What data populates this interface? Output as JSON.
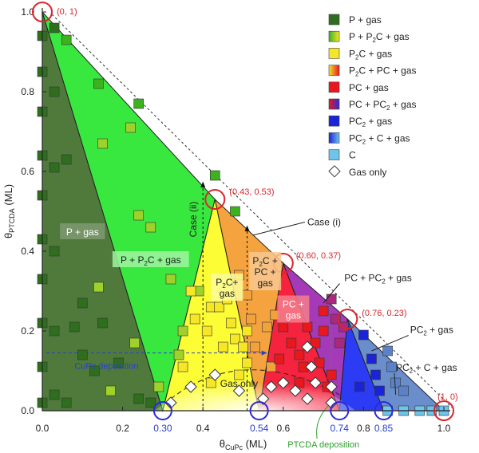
{
  "chart_data": {
    "type": "scatter",
    "xlabel_main": "θ",
    "xlabel_sub": "CuPc",
    "xlabel_unit": " (ML)",
    "ylabel_main": "θ",
    "ylabel_sub": "PTCDA",
    "ylabel_unit": " (ML)",
    "xlim": [
      0,
      1.04
    ],
    "ylim": [
      0,
      1.0
    ],
    "x_ticks": [
      {
        "v": 0.0,
        "t": "0.0"
      },
      {
        "v": 0.2,
        "t": "0.2"
      },
      {
        "v": 0.4,
        "t": "0.4"
      },
      {
        "v": 0.6,
        "t": "0.6"
      },
      {
        "v": 0.8,
        "t": "0.8"
      },
      {
        "v": 1.0,
        "t": "1.0"
      }
    ],
    "x_special_ticks": [
      {
        "v": 0.3,
        "t": "0.30"
      },
      {
        "v": 0.54,
        "t": "0.54"
      },
      {
        "v": 0.74,
        "t": "0.74"
      },
      {
        "v": 0.85,
        "t": "0.85"
      }
    ],
    "y_ticks": [
      {
        "v": 0.0,
        "t": "0.0"
      },
      {
        "v": 0.2,
        "t": "0.2"
      },
      {
        "v": 0.4,
        "t": "0.4"
      },
      {
        "v": 0.6,
        "t": "0.6"
      },
      {
        "v": 0.8,
        "t": "0.8"
      },
      {
        "v": 1.0,
        "t": "1.0"
      }
    ],
    "regions": [
      {
        "name": "P + gas",
        "color": "#4f7a3c",
        "poly": [
          [
            0,
            0
          ],
          [
            0,
            1
          ],
          [
            0.3,
            0
          ]
        ]
      },
      {
        "name": "P + P2C + gas",
        "color": "#39e83f",
        "poly": [
          [
            0,
            1
          ],
          [
            0.43,
            0.53
          ],
          [
            0.3,
            0
          ]
        ]
      },
      {
        "name": "P2C + gas",
        "color": "#fdfd36",
        "poly": [
          [
            0.43,
            0.53
          ],
          [
            0.54,
            0
          ],
          [
            0.3,
            0
          ]
        ]
      },
      {
        "name": "P2C + PC + gas",
        "color": "#f5a33f",
        "poly": [
          [
            0.43,
            0.53
          ],
          [
            0.6,
            0.37
          ],
          [
            0.54,
            0
          ]
        ]
      },
      {
        "name": "PC + gas",
        "color": "#f6233e",
        "poly": [
          [
            0.6,
            0.37
          ],
          [
            0.74,
            0
          ],
          [
            0.54,
            0
          ]
        ]
      },
      {
        "name": "PC + PC2 + gas",
        "color": "#a53ab8",
        "poly": [
          [
            0.6,
            0.37
          ],
          [
            0.76,
            0.23
          ],
          [
            0.74,
            0
          ]
        ]
      },
      {
        "name": "PC2 + gas",
        "color": "#2b3cf4",
        "poly": [
          [
            0.76,
            0.23
          ],
          [
            0.85,
            0
          ],
          [
            0.74,
            0
          ]
        ]
      },
      {
        "name": "PC2 + C + gas",
        "color": "#6a8ecb",
        "poly": [
          [
            0.76,
            0.23
          ],
          [
            1,
            0
          ],
          [
            0.85,
            0
          ]
        ]
      }
    ],
    "series": [
      {
        "name": "P + gas",
        "marker": "square",
        "fill": "#2f6e1e",
        "points": [
          [
            0,
            0.94
          ],
          [
            0,
            0.85
          ],
          [
            0,
            0.75
          ],
          [
            0,
            0.64
          ],
          [
            0,
            0.54
          ],
          [
            0,
            0.43
          ],
          [
            0,
            0.33
          ],
          [
            0,
            0.22
          ],
          [
            0,
            0.11
          ],
          [
            0,
            0.02
          ],
          [
            0.03,
            0.96
          ],
          [
            0.03,
            0.8
          ],
          [
            0.03,
            0.61
          ],
          [
            0.03,
            0.4
          ],
          [
            0.03,
            0.2
          ],
          [
            0.03,
            0.04
          ],
          [
            0.06,
            0.63
          ],
          [
            0.06,
            0.02
          ],
          [
            0.08,
            0.21
          ],
          [
            0.1,
            0.27
          ],
          [
            0.1,
            0.14
          ],
          [
            0.15,
            0.22
          ],
          [
            0.13,
            0.1
          ],
          [
            0.19,
            0.12
          ],
          [
            0.24,
            0.03
          ],
          [
            0.27,
            0.02
          ]
        ]
      },
      {
        "name": "P + P2C + gas",
        "marker": "square",
        "fill": "#3cb21f",
        "points": [
          [
            0.06,
            0.93
          ],
          [
            0.14,
            0.82
          ],
          [
            0.24,
            0.77
          ],
          [
            0.43,
            0.59
          ],
          [
            0.48,
            0.5
          ]
        ]
      },
      {
        "name": "P + P2C + gas (mixed)",
        "marker": "square",
        "fill": "#9ed12a",
        "points": [
          [
            0.15,
            0.67
          ],
          [
            0.14,
            0.31
          ],
          [
            0.22,
            0.71
          ],
          [
            0.24,
            0.49
          ],
          [
            0.23,
            0.17
          ],
          [
            0.17,
            0.05
          ],
          [
            0.27,
            0.46
          ],
          [
            0.29,
            0.06
          ],
          [
            0.32,
            0.33
          ],
          [
            0.39,
            0.3
          ],
          [
            0.35,
            0.2
          ],
          [
            0.34,
            0.14
          ]
        ]
      },
      {
        "name": "P2C + gas",
        "marker": "square",
        "fill": "#f5e628",
        "points": [
          [
            0.37,
            0.3
          ],
          [
            0.38,
            0.23
          ],
          [
            0.41,
            0.2
          ],
          [
            0.42,
            0.26
          ],
          [
            0.44,
            0.26
          ],
          [
            0.46,
            0.28
          ],
          [
            0.45,
            0.16
          ],
          [
            0.47,
            0.22
          ],
          [
            0.48,
            0.18
          ],
          [
            0.51,
            0.2
          ],
          [
            0.51,
            0.12
          ],
          [
            0.5,
            0.16
          ],
          [
            0.49,
            0.09
          ],
          [
            0.35,
            0.11
          ],
          [
            0.42,
            0.07
          ]
        ]
      },
      {
        "name": "P2C + PC + gas",
        "marker": "square",
        "fill": "#f2a23a",
        "points": [
          [
            0.49,
            0.34
          ],
          [
            0.51,
            0.29
          ],
          [
            0.52,
            0.23
          ],
          [
            0.56,
            0.21
          ],
          [
            0.53,
            0.16
          ],
          [
            0.57,
            0.11
          ],
          [
            0.58,
            0.24
          ]
        ]
      },
      {
        "name": "PC + gas",
        "marker": "square",
        "fill": "#e8181f",
        "points": [
          [
            0.6,
            0.21
          ],
          [
            0.62,
            0.17
          ],
          [
            0.64,
            0.14
          ],
          [
            0.65,
            0.11
          ],
          [
            0.68,
            0.17
          ],
          [
            0.69,
            0.12
          ],
          [
            0.66,
            0.21
          ],
          [
            0.59,
            0.13
          ],
          [
            0.64,
            0.07
          ],
          [
            0.7,
            0.2
          ],
          [
            0.72,
            0.09
          ],
          [
            0.7,
            0.25
          ],
          [
            0.71,
            0.06
          ]
        ]
      },
      {
        "name": "PC + PC2 + gas",
        "marker": "square",
        "fill": "#a92a7c",
        "points": [
          [
            0.72,
            0.28
          ],
          [
            0.73,
            0.23
          ],
          [
            0.75,
            0.21
          ],
          [
            0.74,
            0.17
          ]
        ]
      },
      {
        "name": "PC2 + gas",
        "marker": "square",
        "fill": "#1a23d8",
        "points": [
          [
            0.8,
            0.19
          ],
          [
            0.82,
            0.13
          ],
          [
            0.83,
            0.09
          ],
          [
            0.84,
            0.05
          ],
          [
            0.79,
            0.06
          ]
        ]
      },
      {
        "name": "PC2 + C + gas",
        "marker": "square",
        "fill": "#5b82c6",
        "points": [
          [
            0.86,
            0.15
          ],
          [
            0.87,
            0.11
          ],
          [
            0.88,
            0.07
          ],
          [
            0.9,
            0.05
          ]
        ]
      },
      {
        "name": "C",
        "marker": "square",
        "fill": "#6ec4ea",
        "points": [
          [
            0.86,
            0.0
          ],
          [
            0.9,
            0.0
          ],
          [
            0.94,
            0.0
          ],
          [
            0.97,
            0.0
          ],
          [
            1.0,
            0.0
          ]
        ]
      },
      {
        "name": "Gas only",
        "marker": "diamond",
        "fill": "#ffffff",
        "points": [
          [
            0.32,
            0.02
          ],
          [
            0.37,
            0.06
          ],
          [
            0.43,
            0.09
          ],
          [
            0.49,
            0.05
          ],
          [
            0.55,
            0.03
          ],
          [
            0.57,
            0.06
          ],
          [
            0.6,
            0.07
          ],
          [
            0.63,
            0.05
          ],
          [
            0.66,
            0.16
          ],
          [
            0.67,
            0.11
          ],
          [
            0.68,
            0.07
          ],
          [
            0.66,
            0.03
          ],
          [
            0.72,
            0.06
          ],
          [
            0.72,
            0.02
          ]
        ]
      }
    ],
    "corner_points": [
      {
        "x": 0.0,
        "y": 1.0,
        "t": "(0, 1)"
      },
      {
        "x": 0.43,
        "y": 0.53,
        "t": "(0.43, 0.53)"
      },
      {
        "x": 0.6,
        "y": 0.37,
        "t": "(0.60, 0.37)"
      },
      {
        "x": 0.76,
        "y": 0.23,
        "t": "(0.76, 0.23)"
      },
      {
        "x": 1.0,
        "y": 0.0,
        "t": "(1, 0)"
      }
    ],
    "region_labels": [
      {
        "x": 0.1,
        "y": 0.45,
        "lines": [
          "P + gas"
        ],
        "color": "#ffffff",
        "box": "#7f9a72"
      },
      {
        "x": 0.27,
        "y": 0.38,
        "lines": [
          "P + P",
          "2",
          "C + gas"
        ],
        "sub": true,
        "color": "#222222",
        "box": "#9ef59f"
      },
      {
        "x": 0.46,
        "y": 0.31,
        "lines": [
          "P",
          "2",
          "C+",
          "gas"
        ],
        "sub": true,
        "color": "#222222",
        "box": "#fdfd9a"
      },
      {
        "x": 0.555,
        "y": 0.35,
        "lines": [
          "P",
          "2",
          "C +",
          "PC +",
          "gas"
        ],
        "sub": true,
        "color": "#222222",
        "box": "#f8c891"
      },
      {
        "x": 0.625,
        "y": 0.255,
        "lines": [
          "PC +",
          "gas"
        ],
        "color": "#ffffff",
        "box": "#f47e8c"
      },
      {
        "x": 0.49,
        "y": 0.07,
        "lines": [
          "Gas only"
        ],
        "color": "#222222",
        "box": "none"
      }
    ],
    "annotations": [
      {
        "text": "Case (i)",
        "tx": 0.66,
        "ty": 0.465
      },
      {
        "text": "Case (ii)",
        "tx": 0.37,
        "ty": 0.48
      },
      {
        "text": "PC + PC2 + gas",
        "tx": 0.82,
        "ty": 0.325
      },
      {
        "text": "PC2 + gas",
        "tx": 0.9,
        "ty": 0.195
      },
      {
        "text": "PC2 + C + gas",
        "tx": 1.0,
        "ty": 0.1
      },
      {
        "text": "CuPc deposition",
        "tx": 0.11,
        "ty": 0.105
      },
      {
        "text": "PTCDA deposition",
        "tx": 0.75,
        "ty": -0.13
      }
    ],
    "legend": [
      {
        "label": "P + gas",
        "style": "solid",
        "colors": [
          "#2f6e1e"
        ]
      },
      {
        "label": "P + P2C + gas",
        "style": "gradient",
        "colors": [
          "#3cb21f",
          "#f5e628"
        ]
      },
      {
        "label": "P2C + gas",
        "style": "solid",
        "colors": [
          "#f5e628"
        ]
      },
      {
        "label": "P2C + PC + gas",
        "style": "gradient",
        "colors": [
          "#f5e628",
          "#e8181f"
        ]
      },
      {
        "label": "PC + gas",
        "style": "solid",
        "colors": [
          "#e8181f"
        ]
      },
      {
        "label": "PC + PC2 + gas",
        "style": "gradient",
        "colors": [
          "#e8181f",
          "#2b2bd8"
        ]
      },
      {
        "label": "PC2 + gas",
        "style": "solid",
        "colors": [
          "#1a23d8"
        ]
      },
      {
        "label": "PC2 + C + gas",
        "style": "gradient",
        "colors": [
          "#1a23d8",
          "#6ec4ea"
        ]
      },
      {
        "label": "C",
        "style": "solid",
        "colors": [
          "#6ec4ea"
        ]
      },
      {
        "label": "Gas only",
        "style": "diamond",
        "colors": [
          "#ffffff"
        ]
      }
    ],
    "colors": {
      "corner_circle": "#d8262a",
      "blue_circle": "#2a2ad8",
      "blue_text": "#2a40c8",
      "green_text": "#2ea02e",
      "corner_text": "#d8262a"
    }
  }
}
